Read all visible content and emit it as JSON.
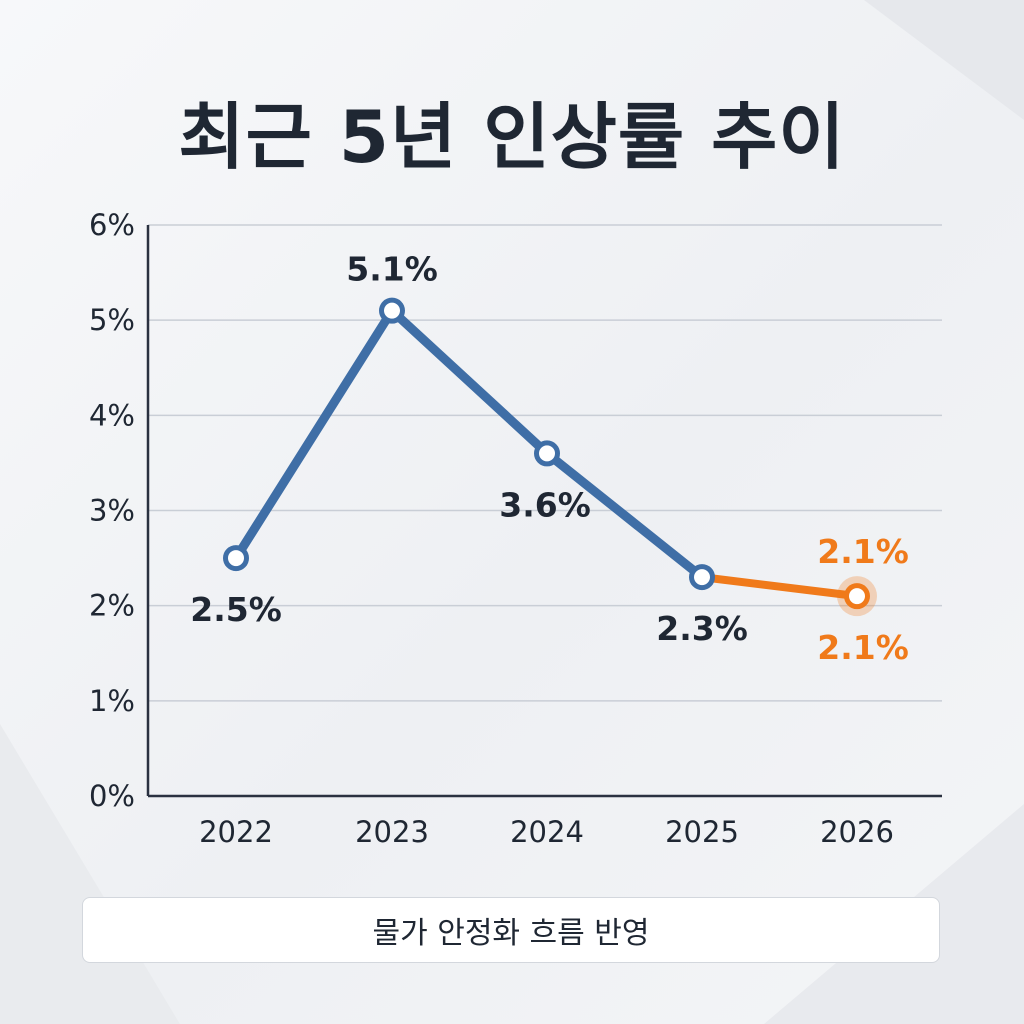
{
  "title": "최근 5년 인상률 추이",
  "footer": {
    "note": "물가 안정화 흐름 반영"
  },
  "colors": {
    "series_main": "#3f6ea6",
    "series_highlight": "#f07a1a",
    "text": "#1f2733",
    "grid": "#c9ced6"
  },
  "chart_data": {
    "type": "line",
    "title": "최근 5년 인상률 추이",
    "xlabel": "",
    "ylabel": "",
    "categories": [
      "2022",
      "2023",
      "2024",
      "2025",
      "2026"
    ],
    "y_ticks": [
      "0%",
      "1%",
      "2%",
      "3%",
      "4%",
      "5%",
      "6%"
    ],
    "ylim": [
      0,
      6
    ],
    "grid": "horizontal",
    "series": [
      {
        "values": [
          2.5,
          5.1,
          3.6,
          2.3,
          2.1
        ],
        "labels": [
          "2.5%",
          "5.1%",
          "3.6%",
          "2.3%",
          "2.1%"
        ],
        "highlight_from_index": 3
      }
    ],
    "annotations": [
      {
        "category": "2026",
        "text": "2.1%"
      }
    ]
  }
}
